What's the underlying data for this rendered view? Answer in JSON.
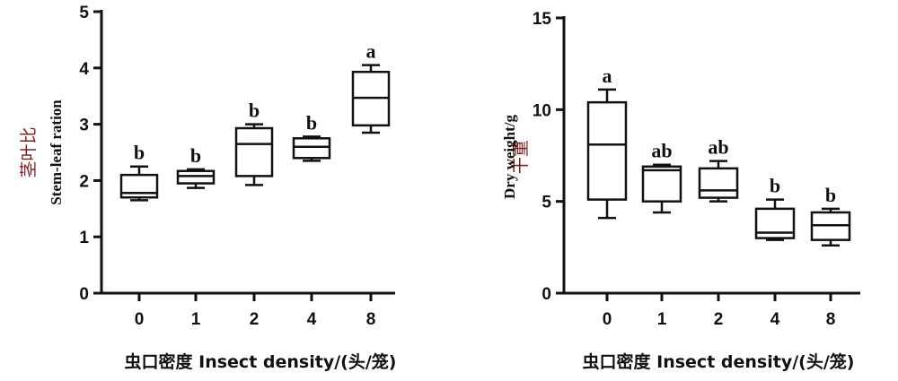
{
  "chart_data": [
    {
      "type": "box",
      "categories": [
        "0",
        "1",
        "2",
        "4",
        "8"
      ],
      "ylim": [
        0,
        5
      ],
      "yticks": [
        "0",
        "1",
        "2",
        "3",
        "4",
        "5"
      ],
      "ylabel_cn": "茎叶比",
      "ylabel_en": "Stem-leaf ration",
      "xlabel": "虫口密度 Insect density/(头/笼)",
      "series": [
        {
          "min": 1.65,
          "q1": 1.7,
          "median": 1.78,
          "q3": 2.1,
          "max": 2.25,
          "letter": "b"
        },
        {
          "min": 1.87,
          "q1": 1.95,
          "median": 2.08,
          "q3": 2.17,
          "max": 2.2,
          "letter": "b"
        },
        {
          "min": 1.92,
          "q1": 2.08,
          "median": 2.65,
          "q3": 2.93,
          "max": 3.0,
          "letter": "b"
        },
        {
          "min": 2.35,
          "q1": 2.4,
          "median": 2.6,
          "q3": 2.75,
          "max": 2.78,
          "letter": "b"
        },
        {
          "min": 2.85,
          "q1": 2.98,
          "median": 3.47,
          "q3": 3.93,
          "max": 4.05,
          "letter": "a"
        }
      ]
    },
    {
      "type": "box",
      "categories": [
        "0",
        "1",
        "2",
        "4",
        "8"
      ],
      "ylim": [
        0,
        15
      ],
      "yticks": [
        "0",
        "5",
        "10",
        "15"
      ],
      "ylabel_cn": "干重",
      "ylabel_en": "Dry weight/g",
      "xlabel": "虫口密度 Insect density/(头/笼)",
      "series": [
        {
          "min": 4.1,
          "q1": 5.1,
          "median": 8.1,
          "q3": 10.4,
          "max": 11.1,
          "letter": "a"
        },
        {
          "min": 4.4,
          "q1": 5.0,
          "median": 6.7,
          "q3": 6.9,
          "max": 7.0,
          "letter": "ab"
        },
        {
          "min": 5.0,
          "q1": 5.2,
          "median": 5.6,
          "q3": 6.8,
          "max": 7.2,
          "letter": "ab"
        },
        {
          "min": 2.9,
          "q1": 3.0,
          "median": 3.3,
          "q3": 4.6,
          "max": 5.1,
          "letter": "b"
        },
        {
          "min": 2.6,
          "q1": 2.9,
          "median": 3.7,
          "q3": 4.4,
          "max": 4.6,
          "letter": "b"
        }
      ]
    }
  ]
}
